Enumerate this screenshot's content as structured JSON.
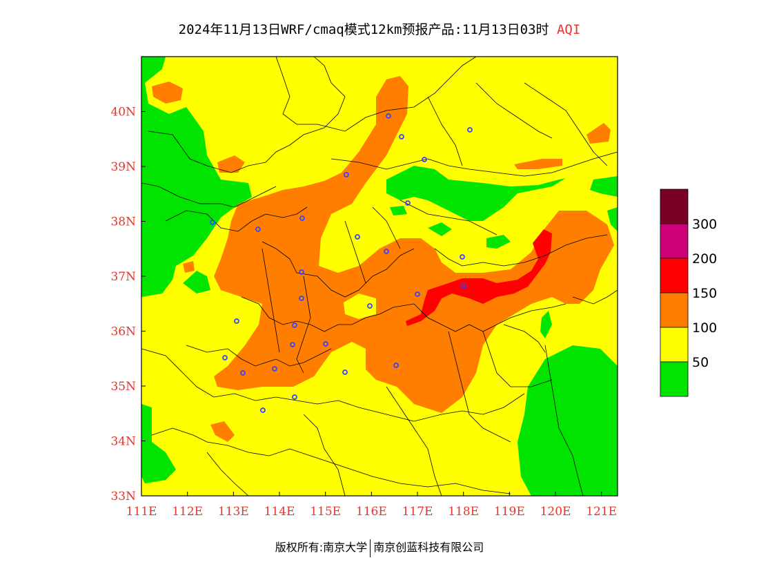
{
  "title": {
    "main": "2024年11月13日WRF/cmaq模式12km预报产品:11月13日03时",
    "variable": "AQI"
  },
  "axes": {
    "x_ticks": [
      "111E",
      "112E",
      "113E",
      "114E",
      "115E",
      "116E",
      "117E",
      "118E",
      "119E",
      "120E",
      "121E"
    ],
    "x_values": [
      111,
      112,
      113,
      114,
      115,
      116,
      117,
      118,
      119,
      120,
      121
    ],
    "y_ticks": [
      "33N",
      "34N",
      "35N",
      "36N",
      "37N",
      "38N",
      "39N",
      "40N"
    ],
    "y_values": [
      33,
      34,
      35,
      36,
      37,
      38,
      39,
      40
    ],
    "lon_range": [
      111,
      121.35
    ],
    "lat_range": [
      33,
      41
    ]
  },
  "legend": {
    "levels": [
      {
        "label": "",
        "color": "#7a0026"
      },
      {
        "label": "300",
        "color": "#cc0077"
      },
      {
        "label": "200",
        "color": "#ff0000"
      },
      {
        "label": "150",
        "color": "#ff7e00"
      },
      {
        "label": "100",
        "color": "#ffff00"
      },
      {
        "label": "50",
        "color": "#00e400"
      }
    ]
  },
  "footer": {
    "left": "版权所有:南京大学",
    "right": "南京创蓝科技有限公司"
  }
}
